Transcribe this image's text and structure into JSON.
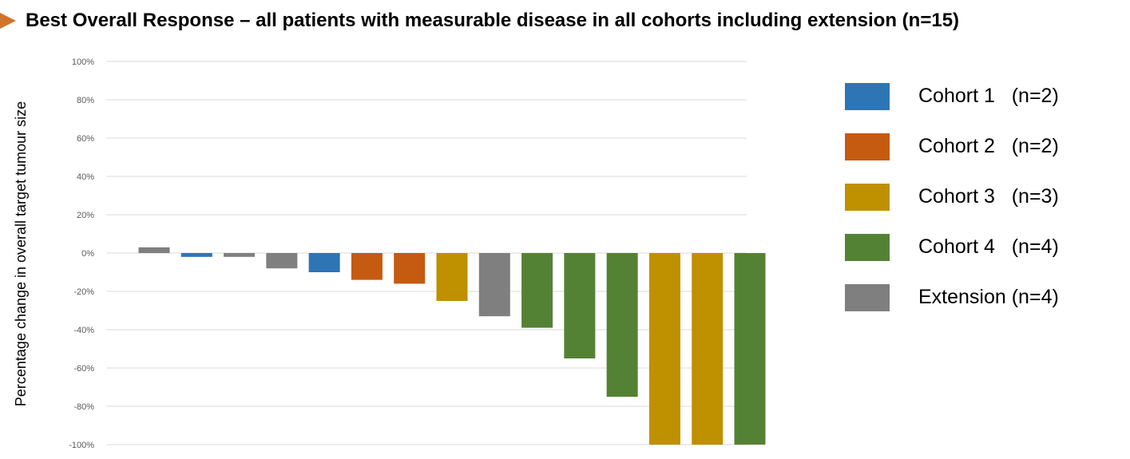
{
  "header": {
    "title": "Best Overall Response – all patients with measurable disease in all cohorts including extension (n=15)",
    "arrow_color": "#d0742c"
  },
  "chart_data": {
    "type": "bar",
    "title": "Best Overall Response – all patients with measurable disease in all cohorts including extension (n=15)",
    "xlabel": "",
    "ylabel": "Percentage change in overall target tumour size",
    "ylim": [
      -100,
      100
    ],
    "yticks": [
      100,
      80,
      60,
      40,
      20,
      0,
      -20,
      -40,
      -60,
      -80,
      -100
    ],
    "ytick_labels": [
      "100%",
      "80%",
      "60%",
      "40%",
      "20%",
      "0%",
      "-20%",
      "-40%",
      "-60%",
      "-80%",
      "-100%"
    ],
    "grid": true,
    "legend_position": "right",
    "values": [
      3,
      -2,
      -2,
      -8,
      -10,
      -14,
      -16,
      -25,
      -33,
      -39,
      -55,
      -75,
      -100,
      -100,
      -100
    ],
    "groups": [
      "Extension",
      "Cohort 1",
      "Extension",
      "Extension",
      "Cohort 1",
      "Cohort 2",
      "Cohort 2",
      "Cohort 3",
      "Extension",
      "Cohort 4",
      "Cohort 4",
      "Cohort 4",
      "Cohort 3",
      "Cohort 3",
      "Cohort 4"
    ],
    "series": [
      {
        "name": "Cohort 1",
        "label": "Cohort 1   (n=2)",
        "color": "#2e75b6"
      },
      {
        "name": "Cohort 2",
        "label": "Cohort 2   (n=2)",
        "color": "#c55a11"
      },
      {
        "name": "Cohort 3",
        "label": "Cohort 3   (n=3)",
        "color": "#bf9000"
      },
      {
        "name": "Cohort 4",
        "label": "Cohort 4   (n=4)",
        "color": "#548235"
      },
      {
        "name": "Extension",
        "label": "Extension (n=4)",
        "color": "#7f7f7f"
      }
    ]
  }
}
